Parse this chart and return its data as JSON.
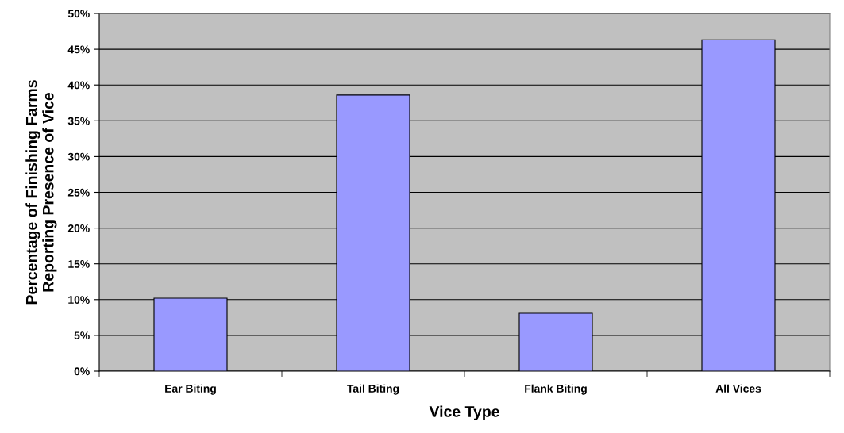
{
  "chart_data": {
    "type": "bar",
    "xlabel": "Vice Type",
    "ylabel": "Percentage of Finishing Farms\nReporting Presence of Vice",
    "categories": [
      "Ear Biting",
      "Tail Biting",
      "Flank Biting",
      "All Vices"
    ],
    "values": [
      10.2,
      38.6,
      8.1,
      46.3
    ],
    "color": "#9999ff",
    "ylim": [
      0,
      50
    ],
    "yticks": [
      {
        "value": 0,
        "label": "0%"
      },
      {
        "value": 5,
        "label": "5%"
      },
      {
        "value": 10,
        "label": "10%"
      },
      {
        "value": 15,
        "label": "15%"
      },
      {
        "value": 20,
        "label": "20%"
      },
      {
        "value": 25,
        "label": "25%"
      },
      {
        "value": 30,
        "label": "30%"
      },
      {
        "value": 35,
        "label": "35%"
      },
      {
        "value": 40,
        "label": "40%"
      },
      {
        "value": 45,
        "label": "45%"
      },
      {
        "value": 50,
        "label": "50%"
      }
    ],
    "grid": "y"
  }
}
